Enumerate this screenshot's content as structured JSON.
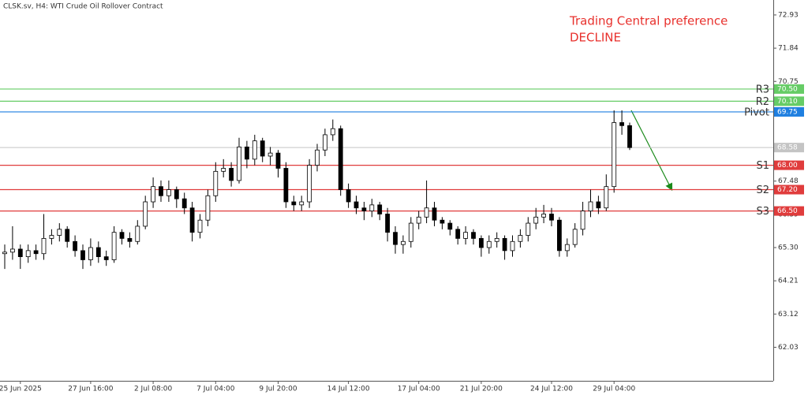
{
  "chart_data": {
    "type": "candlestick",
    "title": "CLSK.sv, H4:  WTI Crude Oil Rollover Contract",
    "annotations": [
      "Trading Central preference",
      "DECLINE"
    ],
    "categories": [
      null,
      null,
      "25 Jun 2025",
      null,
      null,
      null,
      null,
      null,
      null,
      null,
      null,
      "27 Jun 16:00",
      null,
      null,
      null,
      null,
      null,
      null,
      null,
      "2 Jul 08:00",
      null,
      null,
      null,
      null,
      null,
      null,
      null,
      "7 Jul 04:00",
      null,
      null,
      null,
      null,
      null,
      null,
      null,
      "9 Jul 20:00",
      null,
      null,
      null,
      null,
      null,
      null,
      null,
      null,
      "14 Jul 12:00",
      null,
      null,
      null,
      null,
      null,
      null,
      null,
      null,
      "17 Jul 04:00",
      null,
      null,
      null,
      null,
      null,
      null,
      null,
      "21 Jul 20:00",
      null,
      null,
      null,
      null,
      null,
      null,
      null,
      null,
      "24 Jul 12:00",
      null,
      null,
      null,
      null,
      null,
      null,
      null,
      "29 Jul 04:00",
      null,
      null
    ],
    "open": [
      65.1,
      65.15,
      65.25,
      65.0,
      65.2,
      65.1,
      65.6,
      65.7,
      65.9,
      65.5,
      65.2,
      64.9,
      65.3,
      65.0,
      64.9,
      65.8,
      65.6,
      65.5,
      66.0,
      66.8,
      67.3,
      67.0,
      67.2,
      66.9,
      66.6,
      65.8,
      66.2,
      67.0,
      67.8,
      67.9,
      67.5,
      68.6,
      68.2,
      68.8,
      68.3,
      68.4,
      67.9,
      66.8,
      66.7,
      66.8,
      68.0,
      68.5,
      69.0,
      69.2,
      67.2,
      66.8,
      66.6,
      66.5,
      66.7,
      66.4,
      65.8,
      65.4,
      65.5,
      66.1,
      66.3,
      66.6,
      66.2,
      66.1,
      65.9,
      65.6,
      65.8,
      65.6,
      65.3,
      65.5,
      65.6,
      65.2,
      65.5,
      65.7,
      66.1,
      66.3,
      66.4,
      66.2,
      65.2,
      65.4,
      65.9,
      66.5,
      66.8,
      66.6,
      67.3,
      69.4,
      69.3
    ],
    "high": [
      65.4,
      66.0,
      65.4,
      65.4,
      65.4,
      66.4,
      65.9,
      66.1,
      66.0,
      65.7,
      65.4,
      65.6,
      65.5,
      65.2,
      66.0,
      65.9,
      65.8,
      66.2,
      67.0,
      67.6,
      67.5,
      67.5,
      67.3,
      67.1,
      66.8,
      66.4,
      67.2,
      68.1,
      68.2,
      68.1,
      68.9,
      68.8,
      69.0,
      68.9,
      68.6,
      68.5,
      68.1,
      67.0,
      67.0,
      68.2,
      68.7,
      69.2,
      69.5,
      69.3,
      67.4,
      67.0,
      66.8,
      66.9,
      66.8,
      66.6,
      66.0,
      65.7,
      66.3,
      66.5,
      67.5,
      66.8,
      66.3,
      66.2,
      66.0,
      66.0,
      65.9,
      65.7,
      65.7,
      65.8,
      65.7,
      65.7,
      65.9,
      66.3,
      66.6,
      66.7,
      66.6,
      66.3,
      65.6,
      66.1,
      66.8,
      67.2,
      67.0,
      67.7,
      69.8,
      69.8,
      69.4
    ],
    "low": [
      64.6,
      64.9,
      64.6,
      64.8,
      64.9,
      64.9,
      65.4,
      65.5,
      65.3,
      65.0,
      64.6,
      64.7,
      64.8,
      64.7,
      64.8,
      65.4,
      65.3,
      65.4,
      65.9,
      66.6,
      66.8,
      66.8,
      66.6,
      66.4,
      65.5,
      65.6,
      66.0,
      66.8,
      67.6,
      67.3,
      67.4,
      67.9,
      68.0,
      68.1,
      68.0,
      67.6,
      66.6,
      66.5,
      66.5,
      66.6,
      67.8,
      68.3,
      68.8,
      67.0,
      66.6,
      66.4,
      66.2,
      66.3,
      66.2,
      65.5,
      65.1,
      65.1,
      65.3,
      65.9,
      66.1,
      66.0,
      65.9,
      65.7,
      65.4,
      65.4,
      65.4,
      65.0,
      65.1,
      65.3,
      64.9,
      65.0,
      65.3,
      65.5,
      65.9,
      66.1,
      66.0,
      65.0,
      65.0,
      65.3,
      65.7,
      66.3,
      66.4,
      66.5,
      67.1,
      69.0,
      68.5
    ],
    "close": [
      65.15,
      65.25,
      65.0,
      65.2,
      65.1,
      65.6,
      65.7,
      65.9,
      65.5,
      65.2,
      64.9,
      65.3,
      65.0,
      64.9,
      65.8,
      65.6,
      65.5,
      66.0,
      66.8,
      67.3,
      67.0,
      67.2,
      66.9,
      66.6,
      65.8,
      66.2,
      67.0,
      67.8,
      67.9,
      67.5,
      68.6,
      68.2,
      68.8,
      68.3,
      68.4,
      67.9,
      66.8,
      66.7,
      66.8,
      68.0,
      68.5,
      69.0,
      69.2,
      67.2,
      66.8,
      66.6,
      66.5,
      66.7,
      66.4,
      65.8,
      65.4,
      65.5,
      66.1,
      66.3,
      66.6,
      66.2,
      66.1,
      65.9,
      65.6,
      65.8,
      65.6,
      65.3,
      65.5,
      65.6,
      65.2,
      65.5,
      65.7,
      66.1,
      66.3,
      66.4,
      66.2,
      65.2,
      65.4,
      65.9,
      66.5,
      66.8,
      66.6,
      67.3,
      69.4,
      69.3,
      68.58
    ],
    "ylim": [
      60.93,
      73.42
    ],
    "yticks": [
      72.93,
      71.84,
      70.75,
      67.48,
      66.39,
      {
        "value": 65.3,
        "label": "65.30"
      },
      64.21,
      63.12,
      62.03
    ],
    "levels": [
      {
        "name": "R3",
        "value": 70.5,
        "label": "70.50",
        "color": "#66cc66"
      },
      {
        "name": "R2",
        "value": 70.1,
        "label": "70.10",
        "color": "#66cc66"
      },
      {
        "name": "Pivot",
        "value": 69.75,
        "label": "69.75",
        "color": "#1f7fe0"
      },
      {
        "name": "S1",
        "value": 68,
        "label": "68.00",
        "color": "#e03c3c"
      },
      {
        "name": "S2",
        "value": 67.2,
        "label": "67.20",
        "color": "#e03c3c"
      },
      {
        "name": "S3",
        "value": 66.5,
        "label": "66.50",
        "color": "#e03c3c"
      }
    ],
    "last_price": 68.58,
    "last_price_color": "#c4c4c4",
    "up_color": "#ffffff",
    "down_color": "#000000"
  }
}
